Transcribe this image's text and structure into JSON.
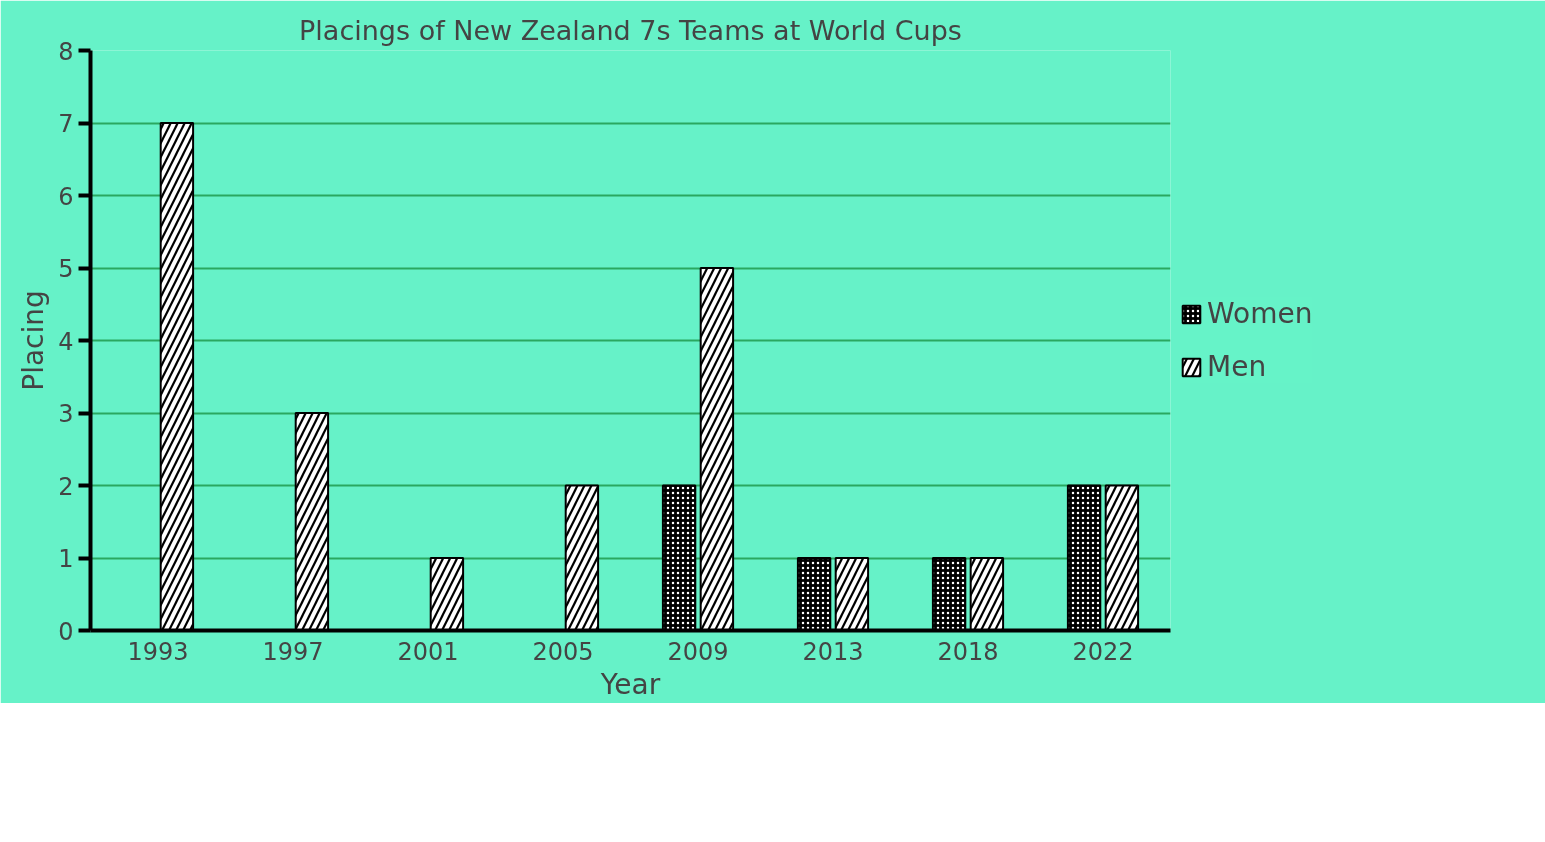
{
  "chart_data": {
    "type": "bar",
    "title": "Placings of New Zealand 7s Teams at World Cups",
    "xlabel": "Year",
    "ylabel": "Placing",
    "categories": [
      "1993",
      "1997",
      "2001",
      "2005",
      "2009",
      "2013",
      "2018",
      "2022"
    ],
    "series": [
      {
        "name": "Women",
        "color": "#000000",
        "values": [
          null,
          null,
          null,
          null,
          2,
          1,
          1,
          2
        ]
      },
      {
        "name": "Men",
        "color": "#000000",
        "values": [
          7,
          3,
          1,
          2,
          5,
          1,
          1,
          2
        ]
      }
    ],
    "ylim": [
      0,
      8
    ],
    "yticks": [
      0,
      1,
      2,
      3,
      4,
      5,
      6,
      7,
      8
    ],
    "grid": "y",
    "legend": "right"
  }
}
